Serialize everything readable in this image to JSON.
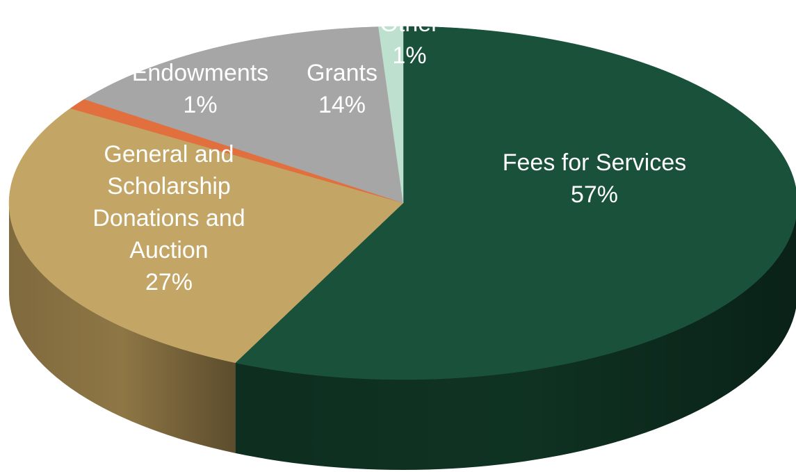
{
  "chart_data": {
    "type": "pie",
    "style": "3d",
    "categories": [
      "Fees for Services",
      "General and Scholarship Donations and Auction",
      "Endowments",
      "Grants",
      "Other"
    ],
    "values": [
      57,
      27,
      1,
      14,
      1
    ],
    "labels": [
      {
        "lines": [
          "Fees for Services",
          "57%"
        ]
      },
      {
        "lines": [
          "General and",
          "Scholarship",
          "Donations and",
          "Auction",
          "27%"
        ]
      },
      {
        "lines": [
          "Endowments",
          "1%"
        ]
      },
      {
        "lines": [
          "Grants",
          "14%"
        ]
      },
      {
        "lines": [
          "Other",
          "1%"
        ]
      }
    ],
    "colors": [
      "#19513a",
      "#c3a666",
      "#e26f3e",
      "#a6a6a6",
      "#bde0cf"
    ],
    "side_colors": [
      "#0f3323",
      "#8e7645",
      "#a8532e",
      "#7a7a7a",
      "#8cb09f"
    ],
    "title": "",
    "legend": "none"
  }
}
